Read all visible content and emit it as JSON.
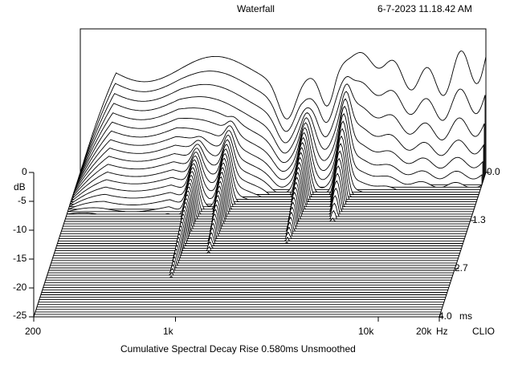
{
  "header": {
    "title": "Waterfall",
    "timestamp": "6-7-2023 11.18.42 AM"
  },
  "footer": {
    "brand": "CLIO",
    "caption": "Cumulative Spectral Decay   Rise 0.580ms   Unsmoothed"
  },
  "chart_data": {
    "type": "waterfall",
    "title": "Waterfall",
    "subtitle": "Cumulative Spectral Decay   Rise 0.580ms   Unsmoothed",
    "x_axis": {
      "label": "Hz",
      "scale": "log",
      "range": [
        200,
        20000
      ],
      "ticks": [
        {
          "value": 200,
          "label": "200"
        },
        {
          "value": 1000,
          "label": "1k"
        },
        {
          "value": 10000,
          "label": "10k"
        },
        {
          "value": 20000,
          "label": "20k"
        }
      ]
    },
    "y_axis": {
      "label": "dB",
      "range": [
        -25,
        0
      ],
      "ticks": [
        "0",
        "-5",
        "-10",
        "-15",
        "-20",
        "-25"
      ]
    },
    "z_axis": {
      "label": "ms",
      "range": [
        0,
        4.0
      ],
      "ticks": [
        "0.0",
        "1.3",
        "2.7",
        "4.0"
      ]
    },
    "slices": 60,
    "resonances": [
      {
        "freq_hz": 820,
        "level_db": -14,
        "decay_ms": 3.0
      },
      {
        "freq_hz": 1150,
        "level_db": -12,
        "decay_ms": 2.3
      },
      {
        "freq_hz": 2700,
        "level_db": -12,
        "decay_ms": 2.0
      },
      {
        "freq_hz": 4200,
        "level_db": -7,
        "decay_ms": 1.4
      }
    ],
    "grid": false,
    "colors": {
      "lines": "#000000",
      "fill": "#ffffff"
    }
  }
}
